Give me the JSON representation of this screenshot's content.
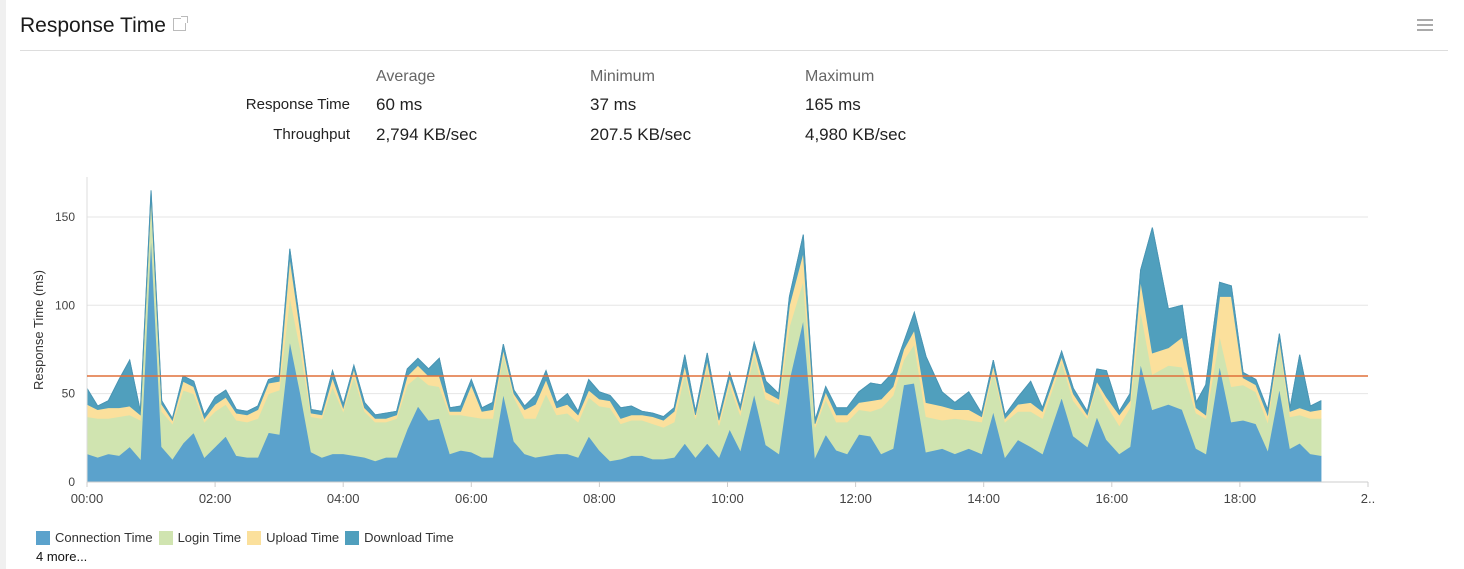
{
  "panel": {
    "title": "Response Time",
    "external_link_icon": "external-link-icon",
    "menu_icon": "hamburger-menu-icon"
  },
  "stats": {
    "headers": [
      "Average",
      "Minimum",
      "Maximum"
    ],
    "rows": [
      {
        "label": "Response Time",
        "values": [
          "60 ms",
          "37 ms",
          "165 ms"
        ]
      },
      {
        "label": "Throughput",
        "values": [
          "2,794 KB/sec",
          "207.5 KB/sec",
          "4,980 KB/sec"
        ]
      }
    ]
  },
  "legend_more": "4 more...",
  "chart_data": {
    "type": "area",
    "stacked": true,
    "ylabel": "Response Time (ms)",
    "ylim": [
      0,
      170
    ],
    "yticks": [
      0,
      50,
      100,
      150
    ],
    "xlim": [
      "00:00",
      "20:00"
    ],
    "xticks": [
      "00:00",
      "02:00",
      "04:00",
      "06:00",
      "08:00",
      "10:00",
      "12:00",
      "14:00",
      "16:00",
      "18:00",
      "2.."
    ],
    "grid": true,
    "legend_position": "bottom-left",
    "average_line": {
      "value": 60,
      "color": "#e0703a"
    },
    "x": [
      "00:00",
      "00:10",
      "00:20",
      "00:30",
      "00:40",
      "00:50",
      "01:00",
      "01:10",
      "01:20",
      "01:30",
      "01:40",
      "01:50",
      "02:00",
      "02:10",
      "02:20",
      "02:30",
      "02:40",
      "02:50",
      "03:00",
      "03:10",
      "03:20",
      "03:30",
      "03:40",
      "03:50",
      "04:00",
      "04:10",
      "04:20",
      "04:30",
      "04:40",
      "04:50",
      "05:00",
      "05:10",
      "05:20",
      "05:30",
      "05:40",
      "05:50",
      "06:00",
      "06:10",
      "06:20",
      "06:30",
      "06:40",
      "06:50",
      "07:00",
      "07:10",
      "07:20",
      "07:30",
      "07:40",
      "07:50",
      "08:00",
      "08:10",
      "08:20",
      "08:30",
      "08:40",
      "08:50",
      "09:00",
      "09:10",
      "09:20",
      "09:30",
      "09:41",
      "09:52",
      "10:02",
      "10:12",
      "10:25",
      "10:36",
      "10:48",
      "10:58",
      "11:11",
      "11:22",
      "11:32",
      "11:42",
      "11:52",
      "12:03",
      "12:14",
      "12:24",
      "12:35",
      "12:45",
      "12:55",
      "13:06",
      "13:21",
      "13:33",
      "13:46",
      "13:58",
      "14:09",
      "14:20",
      "14:32",
      "14:44",
      "14:55",
      "15:13",
      "15:24",
      "15:37",
      "15:46",
      "15:55",
      "16:07",
      "16:17",
      "16:27",
      "16:38",
      "16:53",
      "17:06",
      "17:19",
      "17:28",
      "17:41",
      "17:52",
      "18:03",
      "18:15",
      "18:26",
      "18:37",
      "18:47",
      "18:56",
      "19:06",
      "19:16"
    ],
    "series": [
      {
        "name": "Connection Time",
        "color": "#5ba2cc",
        "values": [
          16,
          14,
          16,
          15,
          20,
          13,
          140,
          20,
          13,
          22,
          28,
          14,
          20,
          26,
          15,
          14,
          14,
          28,
          27,
          80,
          50,
          17,
          14,
          16,
          16,
          15,
          14,
          12,
          14,
          14,
          30,
          43,
          35,
          36,
          16,
          18,
          17,
          14,
          14,
          50,
          23,
          16,
          14,
          15,
          16,
          16,
          14,
          26,
          18,
          12,
          13,
          15,
          15,
          13,
          13,
          14,
          22,
          14,
          22,
          14,
          30,
          18,
          50,
          21,
          16,
          58,
          92,
          14,
          27,
          18,
          16,
          27,
          26,
          16,
          19,
          55,
          56,
          17,
          19,
          16,
          19,
          16,
          40,
          14,
          24,
          20,
          16,
          48,
          26,
          20,
          37,
          24,
          16,
          20,
          67,
          41,
          44,
          41,
          19,
          16,
          66,
          34,
          35,
          33,
          18,
          53,
          19,
          22,
          16,
          15
        ]
      },
      {
        "name": "Login Time",
        "color": "#d0e4b0",
        "values": [
          21,
          22,
          20,
          22,
          18,
          22,
          20,
          20,
          20,
          30,
          22,
          20,
          20,
          18,
          20,
          20,
          22,
          22,
          25,
          25,
          25,
          20,
          22,
          38,
          24,
          45,
          26,
          22,
          20,
          22,
          25,
          17,
          20,
          18,
          22,
          20,
          20,
          22,
          22,
          22,
          25,
          20,
          22,
          35,
          22,
          23,
          20,
          22,
          25,
          30,
          20,
          20,
          20,
          20,
          18,
          20,
          40,
          22,
          43,
          18,
          25,
          20,
          22,
          26,
          28,
          30,
          22,
          17,
          20,
          16,
          18,
          14,
          14,
          26,
          30,
          14,
          22,
          20,
          16,
          20,
          16,
          18,
          23,
          20,
          16,
          20,
          20,
          20,
          20,
          16,
          18,
          20,
          16,
          22,
          30,
          20,
          22,
          24,
          20,
          20,
          17,
          20,
          20,
          18,
          16,
          25,
          18,
          16,
          20,
          21
        ]
      },
      {
        "name": "Upload Time",
        "color": "#fbe09c",
        "values": [
          7,
          5,
          6,
          5,
          5,
          3,
          2,
          4,
          2,
          5,
          4,
          2,
          4,
          4,
          4,
          4,
          5,
          6,
          5,
          22,
          10,
          2,
          2,
          5,
          2,
          4,
          2,
          2,
          2,
          2,
          5,
          6,
          5,
          6,
          2,
          2,
          18,
          4,
          5,
          3,
          2,
          5,
          8,
          8,
          4,
          5,
          4,
          4,
          4,
          4,
          3,
          3,
          3,
          4,
          4,
          6,
          4,
          2,
          4,
          3,
          4,
          3,
          4,
          4,
          3,
          12,
          16,
          2,
          4,
          4,
          4,
          4,
          6,
          5,
          5,
          6,
          8,
          8,
          8,
          5,
          6,
          3,
          3,
          2,
          4,
          5,
          4,
          3,
          4,
          2,
          2,
          4,
          6,
          4,
          17,
          12,
          10,
          17,
          3,
          2,
          22,
          51,
          4,
          4,
          4,
          3,
          3,
          4,
          4,
          5
        ]
      },
      {
        "name": "Download Time",
        "color": "#509fbd",
        "values": [
          9,
          2,
          4,
          16,
          26,
          2,
          3,
          2,
          1,
          3,
          3,
          2,
          4,
          4,
          2,
          2,
          2,
          2,
          3,
          5,
          3,
          2,
          2,
          4,
          2,
          2,
          3,
          2,
          3,
          2,
          4,
          4,
          4,
          10,
          2,
          3,
          3,
          2,
          4,
          3,
          2,
          2,
          5,
          5,
          3,
          6,
          2,
          6,
          4,
          3,
          6,
          5,
          2,
          2,
          2,
          2,
          6,
          2,
          4,
          2,
          3,
          2,
          3,
          6,
          3,
          5,
          10,
          2,
          3,
          4,
          4,
          6,
          10,
          8,
          8,
          4,
          10,
          26,
          8,
          4,
          10,
          2,
          3,
          2,
          4,
          12,
          2,
          3,
          3,
          2,
          7,
          15,
          2,
          4,
          6,
          71,
          22,
          18,
          3,
          17,
          8,
          6,
          3,
          3,
          3,
          3,
          2,
          30,
          3,
          5
        ]
      }
    ]
  }
}
